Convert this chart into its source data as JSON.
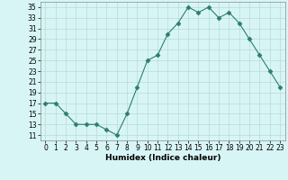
{
  "x": [
    0,
    1,
    2,
    3,
    4,
    5,
    6,
    7,
    8,
    9,
    10,
    11,
    12,
    13,
    14,
    15,
    16,
    17,
    18,
    19,
    20,
    21,
    22,
    23
  ],
  "y": [
    17,
    17,
    15,
    13,
    13,
    13,
    12,
    11,
    15,
    20,
    25,
    26,
    30,
    32,
    35,
    34,
    35,
    33,
    34,
    32,
    29,
    26,
    23,
    20
  ],
  "xlabel": "Humidex (Indice chaleur)",
  "ylabel": "",
  "xlim": [
    -0.5,
    23.5
  ],
  "ylim": [
    10,
    36
  ],
  "yticks": [
    11,
    13,
    15,
    17,
    19,
    21,
    23,
    25,
    27,
    29,
    31,
    33,
    35
  ],
  "xticks": [
    0,
    1,
    2,
    3,
    4,
    5,
    6,
    7,
    8,
    9,
    10,
    11,
    12,
    13,
    14,
    15,
    16,
    17,
    18,
    19,
    20,
    21,
    22,
    23
  ],
  "line_color": "#2e7d6e",
  "marker": "D",
  "marker_size": 2.5,
  "background_color": "#d8f5f5",
  "grid_color": "#b8dada",
  "label_fontsize": 6.5,
  "tick_fontsize": 5.5
}
